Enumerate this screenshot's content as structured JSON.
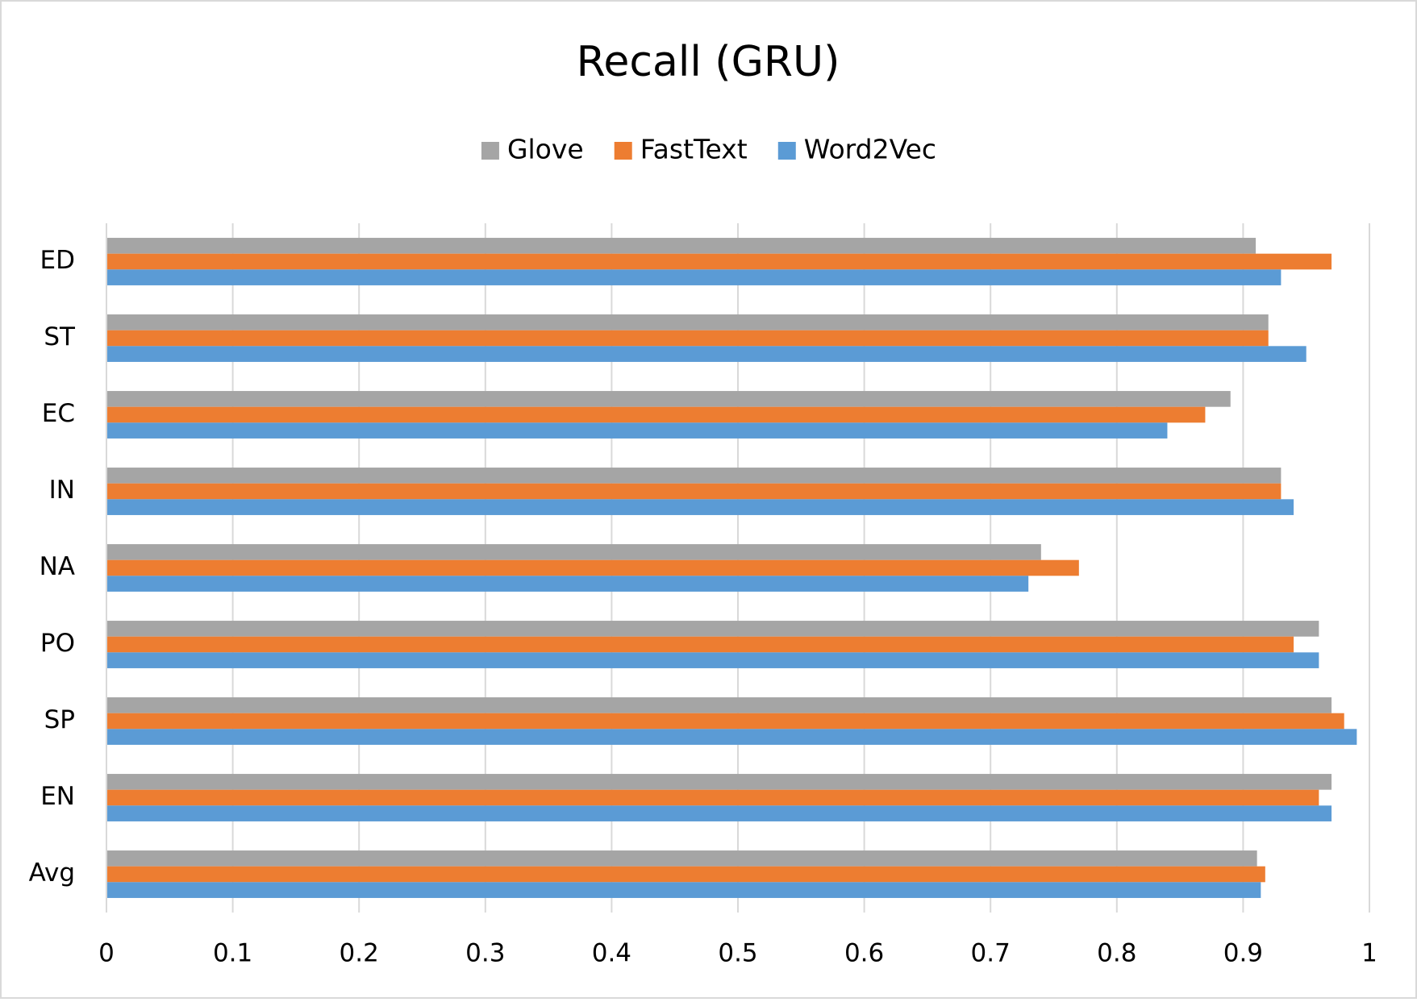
{
  "chart_data": {
    "type": "hbar",
    "title": "Recall (GRU)",
    "categories": [
      "ED",
      "ST",
      "EC",
      "IN",
      "NA",
      "PO",
      "SP",
      "EN",
      "Avg"
    ],
    "series": [
      {
        "name": "Glove",
        "color": "#a5a5a5",
        "values": [
          0.91,
          0.92,
          0.89,
          0.93,
          0.74,
          0.96,
          0.97,
          0.97,
          0.911
        ]
      },
      {
        "name": "FastText",
        "color": "#ed7d31",
        "values": [
          0.97,
          0.92,
          0.87,
          0.93,
          0.77,
          0.94,
          0.98,
          0.96,
          0.9175
        ]
      },
      {
        "name": "Word2Vec",
        "color": "#5b9bd5",
        "values": [
          0.93,
          0.95,
          0.84,
          0.94,
          0.73,
          0.96,
          0.99,
          0.97,
          0.914
        ]
      }
    ],
    "xlim": [
      0,
      1
    ],
    "xticks": [
      0,
      0.1,
      0.2,
      0.3,
      0.4,
      0.5,
      0.6,
      0.7,
      0.8,
      0.9,
      1
    ],
    "grid": true,
    "legend": "top"
  }
}
